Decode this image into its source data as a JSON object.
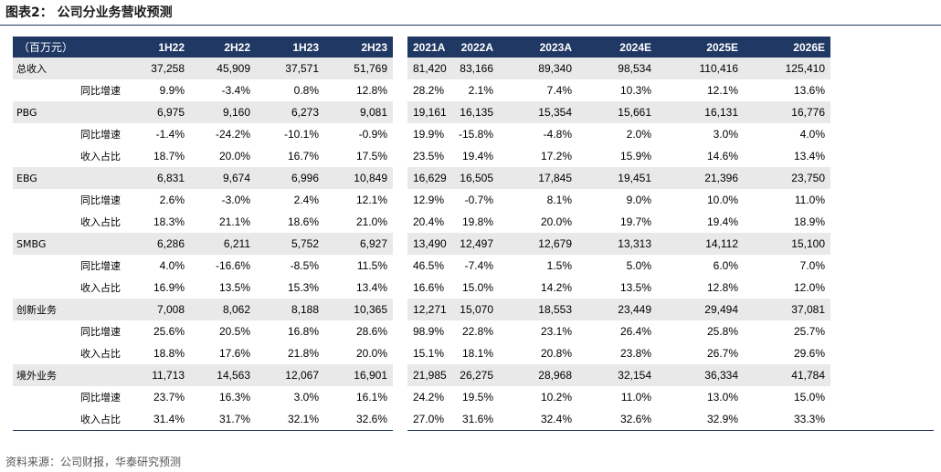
{
  "header": {
    "title": "图表2： 公司分业务营收预测"
  },
  "table": {
    "unit": "（百万元）",
    "half_columns": [
      "1H22",
      "2H22",
      "1H23",
      "2H23"
    ],
    "year_columns": [
      "2021A",
      "2022A",
      "2023A",
      "2024E",
      "2025E",
      "2026E"
    ],
    "segments": [
      {
        "name": "总收入",
        "half": [
          "37,258",
          "45,909",
          "37,571",
          "51,769"
        ],
        "year": [
          "81,420",
          "83,166",
          "89,340",
          "98,534",
          "110,416",
          "125,410"
        ],
        "metrics": [
          {
            "label": "同比增速",
            "half": [
              "9.9%",
              "-3.4%",
              "0.8%",
              "12.8%"
            ],
            "year": [
              "28.2%",
              "2.1%",
              "7.4%",
              "10.3%",
              "12.1%",
              "13.6%"
            ]
          }
        ]
      },
      {
        "name": "PBG",
        "half": [
          "6,975",
          "9,160",
          "6,273",
          "9,081"
        ],
        "year": [
          "19,161",
          "16,135",
          "15,354",
          "15,661",
          "16,131",
          "16,776"
        ],
        "metrics": [
          {
            "label": "同比增速",
            "half": [
              "-1.4%",
              "-24.2%",
              "-10.1%",
              "-0.9%"
            ],
            "year": [
              "19.9%",
              "-15.8%",
              "-4.8%",
              "2.0%",
              "3.0%",
              "4.0%"
            ]
          },
          {
            "label": "收入占比",
            "half": [
              "18.7%",
              "20.0%",
              "16.7%",
              "17.5%"
            ],
            "year": [
              "23.5%",
              "19.4%",
              "17.2%",
              "15.9%",
              "14.6%",
              "13.4%"
            ]
          }
        ]
      },
      {
        "name": "EBG",
        "half": [
          "6,831",
          "9,674",
          "6,996",
          "10,849"
        ],
        "year": [
          "16,629",
          "16,505",
          "17,845",
          "19,451",
          "21,396",
          "23,750"
        ],
        "metrics": [
          {
            "label": "同比增速",
            "half": [
              "2.6%",
              "-3.0%",
              "2.4%",
              "12.1%"
            ],
            "year": [
              "12.9%",
              "-0.7%",
              "8.1%",
              "9.0%",
              "10.0%",
              "11.0%"
            ]
          },
          {
            "label": "收入占比",
            "half": [
              "18.3%",
              "21.1%",
              "18.6%",
              "21.0%"
            ],
            "year": [
              "20.4%",
              "19.8%",
              "20.0%",
              "19.7%",
              "19.4%",
              "18.9%"
            ]
          }
        ]
      },
      {
        "name": "SMBG",
        "half": [
          "6,286",
          "6,211",
          "5,752",
          "6,927"
        ],
        "year": [
          "13,490",
          "12,497",
          "12,679",
          "13,313",
          "14,112",
          "15,100"
        ],
        "metrics": [
          {
            "label": "同比增速",
            "half": [
              "4.0%",
              "-16.6%",
              "-8.5%",
              "11.5%"
            ],
            "year": [
              "46.5%",
              "-7.4%",
              "1.5%",
              "5.0%",
              "6.0%",
              "7.0%"
            ]
          },
          {
            "label": "收入占比",
            "half": [
              "16.9%",
              "13.5%",
              "15.3%",
              "13.4%"
            ],
            "year": [
              "16.6%",
              "15.0%",
              "14.2%",
              "13.5%",
              "12.8%",
              "12.0%"
            ]
          }
        ]
      },
      {
        "name": "创新业务",
        "half": [
          "7,008",
          "8,062",
          "8,188",
          "10,365"
        ],
        "year": [
          "12,271",
          "15,070",
          "18,553",
          "23,449",
          "29,494",
          "37,081"
        ],
        "metrics": [
          {
            "label": "同比增速",
            "half": [
              "25.6%",
              "20.5%",
              "16.8%",
              "28.6%"
            ],
            "year": [
              "98.9%",
              "22.8%",
              "23.1%",
              "26.4%",
              "25.8%",
              "25.7%"
            ]
          },
          {
            "label": "收入占比",
            "half": [
              "18.8%",
              "17.6%",
              "21.8%",
              "20.0%"
            ],
            "year": [
              "15.1%",
              "18.1%",
              "20.8%",
              "23.8%",
              "26.7%",
              "29.6%"
            ]
          }
        ]
      },
      {
        "name": "境外业务",
        "half": [
          "11,713",
          "14,563",
          "12,067",
          "16,901"
        ],
        "year": [
          "21,985",
          "26,275",
          "28,968",
          "32,154",
          "36,334",
          "41,784"
        ],
        "metrics": [
          {
            "label": "同比增速",
            "half": [
              "23.7%",
              "16.3%",
              "3.0%",
              "16.1%"
            ],
            "year": [
              "24.2%",
              "19.5%",
              "10.2%",
              "11.0%",
              "13.0%",
              "15.0%"
            ]
          },
          {
            "label": "收入占比",
            "half": [
              "31.4%",
              "31.7%",
              "32.1%",
              "32.6%"
            ],
            "year": [
              "27.0%",
              "31.6%",
              "32.4%",
              "32.6%",
              "32.9%",
              "33.3%"
            ]
          }
        ]
      }
    ]
  },
  "footer": {
    "source": "资料来源：公司财报，华泰研究预测"
  }
}
